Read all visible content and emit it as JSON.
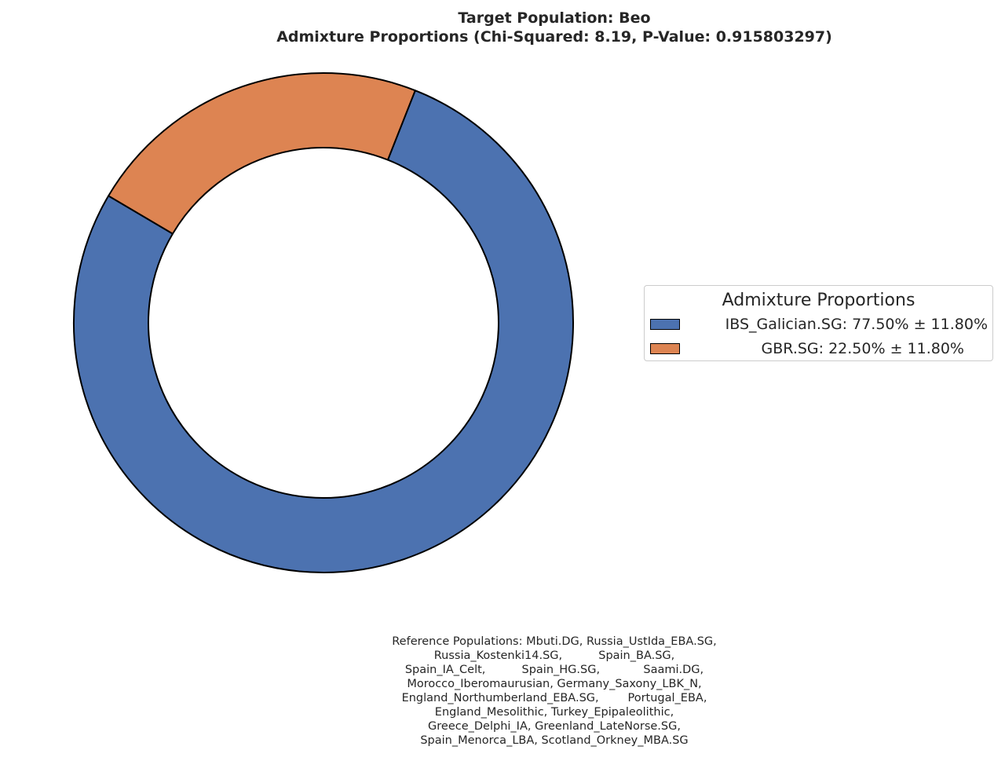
{
  "title_line1": "Target Population: Beo",
  "title_line2": "Admixture Proportions (Chi-Squared: 8.19, P-Value: 0.915803297)",
  "chart_data": {
    "type": "pie",
    "style": "donut",
    "title": "Target Population: Beo\nAdmixture Proportions (Chi-Squared: 8.19, P-Value: 0.915803297)",
    "categories": [
      "IBS_Galician.SG",
      "GBR.SG"
    ],
    "values": [
      77.5,
      22.5
    ],
    "errors": [
      11.8,
      11.8
    ],
    "colors": [
      "#4c72b0",
      "#dd8452"
    ],
    "edge_color": "#000000",
    "legend_title": "Admixture Proportions",
    "legend_placement": "right",
    "legend_labels": [
      "IBS_Galician.SG: 77.50% ± 11.80%",
      "GBR.SG: 22.50% ± 11.80%"
    ]
  },
  "reference_note": [
    "Reference Populations: Mbuti.DG, Russia_UstIda_EBA.SG,",
    "Russia_Kostenki14.SG,          Spain_BA.SG,",
    "Spain_IA_Celt,          Spain_HG.SG,            Saami.DG,",
    "Morocco_Iberomaurusian, Germany_Saxony_LBK_N,",
    "England_Northumberland_EBA.SG,        Portugal_EBA,",
    "England_Mesolithic, Turkey_Epipaleolithic,",
    "Greece_Delphi_IA, Greenland_LateNorse.SG,",
    "Spain_Menorca_LBA, Scotland_Orkney_MBA.SG"
  ]
}
